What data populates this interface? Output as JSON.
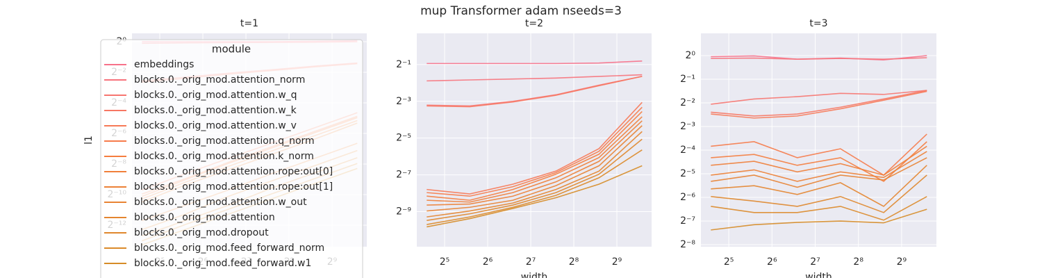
{
  "suptitle": "mup Transformer adam nseeds=3",
  "chart_data": [
    {
      "type": "line",
      "title": "t=1",
      "ylabel": "l1",
      "log_x": true,
      "log_y": true,
      "grid": true,
      "legend": {
        "title": "module",
        "loc": "upper left"
      },
      "x": [
        24,
        48,
        96,
        192,
        384,
        768
      ],
      "xlim": [
        20.46,
        895
      ],
      "xticks": [
        {
          "value": 32,
          "label": "2⁵"
        },
        {
          "value": 64,
          "label": "2⁶"
        },
        {
          "value": 128,
          "label": "2⁷"
        },
        {
          "value": 256,
          "label": "2⁸"
        },
        {
          "value": 512,
          "label": "2⁹"
        }
      ],
      "ylim": [
        9.2e-05,
        1.46
      ],
      "yticks": [
        {
          "value": 1,
          "label": "2⁰"
        },
        {
          "value": 0.25,
          "label": "2⁻²"
        },
        {
          "value": 0.0625,
          "label": "2⁻⁴"
        },
        {
          "value": 0.015625,
          "label": "2⁻⁶"
        },
        {
          "value": 0.00390625,
          "label": "2⁻⁸"
        },
        {
          "value": 0.0009765625,
          "label": "2⁻¹⁰"
        },
        {
          "value": 0.000244140625,
          "label": "2⁻¹²"
        }
      ],
      "series": [
        {
          "name": "embeddings",
          "color": "#f77189",
          "values": [
            1.0,
            1.0,
            1.0,
            1.0,
            1.02,
            1.05
          ]
        },
        {
          "name": "blocks.0._orig_mod.attention_norm",
          "color": "#f7737c",
          "values": [
            0.93,
            0.95,
            0.96,
            0.97,
            0.98,
            1.0
          ]
        },
        {
          "name": "blocks.0._orig_mod.attention.w_q",
          "color": "#f77570",
          "values": [
            0.17,
            0.2,
            0.24,
            0.28,
            0.33,
            0.38
          ]
        },
        {
          "name": "blocks.0._orig_mod.attention.w_k",
          "color": "#f77763",
          "values": [
            0.16,
            0.19,
            0.23,
            0.27,
            0.32,
            0.37
          ]
        },
        {
          "name": "blocks.0._orig_mod.attention.w_v",
          "color": "#f77956",
          "values": [
            0.0012,
            0.0025,
            0.005,
            0.01,
            0.02,
            0.04
          ]
        },
        {
          "name": "blocks.0._orig_mod.attention.q_norm",
          "color": "#f67b4a",
          "values": [
            0.001,
            0.002,
            0.0042,
            0.0085,
            0.017,
            0.034
          ]
        },
        {
          "name": "blocks.0._orig_mod.attention.k_norm",
          "color": "#f57d3e",
          "values": [
            0.0009,
            0.0019,
            0.004,
            0.008,
            0.016,
            0.032
          ]
        },
        {
          "name": "blocks.0._orig_mod.attention.rope:out[0]",
          "color": "#f07f3a",
          "values": [
            0.0008,
            0.0017,
            0.0035,
            0.007,
            0.014,
            0.028
          ]
        },
        {
          "name": "blocks.0._orig_mod.attention.rope:out[1]",
          "color": "#ec8136",
          "values": [
            0.0007,
            0.0015,
            0.003,
            0.006,
            0.012,
            0.025
          ]
        },
        {
          "name": "blocks.0._orig_mod.attention.w_out",
          "color": "#e88333",
          "values": [
            0.0003,
            0.0006,
            0.0012,
            0.0025,
            0.005,
            0.01
          ]
        },
        {
          "name": "blocks.0._orig_mod.attention",
          "color": "#e4852f",
          "values": [
            0.0002,
            0.0004,
            0.0009,
            0.0018,
            0.0036,
            0.0072
          ]
        },
        {
          "name": "blocks.0._orig_mod.dropout",
          "color": "#df872c",
          "values": [
            0.00015,
            0.0003,
            0.0006,
            0.0013,
            0.0026,
            0.0052
          ]
        },
        {
          "name": "blocks.0._orig_mod.feed_forward_norm",
          "color": "#db8a29",
          "values": [
            0.00012,
            0.00025,
            0.0005,
            0.001,
            0.002,
            0.004
          ]
        },
        {
          "name": "blocks.0._orig_mod.feed_forward.w1",
          "color": "#d68c27",
          "values": [
            0.0001,
            0.0002,
            0.0004,
            0.0008,
            0.0016,
            0.0032
          ]
        }
      ]
    },
    {
      "type": "line",
      "title": "t=2",
      "xlabel": "width",
      "log_x": true,
      "log_y": true,
      "grid": true,
      "x": [
        24,
        48,
        96,
        192,
        384,
        768
      ],
      "xlim": [
        20.46,
        895
      ],
      "xticks": [
        {
          "value": 32,
          "label": "2⁵"
        },
        {
          "value": 64,
          "label": "2⁶"
        },
        {
          "value": 128,
          "label": "2⁷"
        },
        {
          "value": 256,
          "label": "2⁸"
        },
        {
          "value": 512,
          "label": "2⁹"
        }
      ],
      "ylim": [
        0.00052,
        1.62
      ],
      "yticks": [
        {
          "value": 0.5,
          "label": "2⁻¹"
        },
        {
          "value": 0.125,
          "label": "2⁻³"
        },
        {
          "value": 0.03125,
          "label": "2⁻⁵"
        },
        {
          "value": 0.0078125,
          "label": "2⁻⁷"
        },
        {
          "value": 0.001953125,
          "label": "2⁻⁹"
        }
      ],
      "series": [
        {
          "color": "#f77189",
          "values": [
            0.52,
            0.52,
            0.52,
            0.52,
            0.53,
            0.57
          ]
        },
        {
          "color": "#f7737c",
          "values": [
            0.27,
            0.28,
            0.29,
            0.3,
            0.32,
            0.34
          ]
        },
        {
          "color": "#f77570",
          "values": [
            0.108,
            0.105,
            0.125,
            0.16,
            0.23,
            0.32
          ]
        },
        {
          "color": "#f77763",
          "values": [
            0.105,
            0.102,
            0.122,
            0.157,
            0.225,
            0.32
          ]
        },
        {
          "color": "#f77956",
          "values": [
            0.0045,
            0.0038,
            0.0055,
            0.009,
            0.021,
            0.12
          ]
        },
        {
          "color": "#f67b4a",
          "values": [
            0.004,
            0.0035,
            0.005,
            0.0085,
            0.019,
            0.1
          ]
        },
        {
          "color": "#f57d3e",
          "values": [
            0.0035,
            0.003,
            0.0045,
            0.008,
            0.017,
            0.085
          ]
        },
        {
          "color": "#f07f3a",
          "values": [
            0.003,
            0.0028,
            0.004,
            0.007,
            0.015,
            0.07
          ]
        },
        {
          "color": "#ec8136",
          "values": [
            0.0025,
            0.0026,
            0.0035,
            0.006,
            0.013,
            0.06
          ]
        },
        {
          "color": "#e88333",
          "values": [
            0.002,
            0.0023,
            0.003,
            0.0052,
            0.011,
            0.05
          ]
        },
        {
          "color": "#e4852f",
          "values": [
            0.0016,
            0.002,
            0.0027,
            0.0045,
            0.009,
            0.04
          ]
        },
        {
          "color": "#df872c",
          "values": [
            0.0014,
            0.0018,
            0.0025,
            0.004,
            0.008,
            0.03
          ]
        },
        {
          "color": "#db8a29",
          "values": [
            0.0012,
            0.0016,
            0.0023,
            0.0036,
            0.007,
            0.02
          ]
        },
        {
          "color": "#d68c27",
          "values": [
            0.0011,
            0.0015,
            0.0022,
            0.0033,
            0.0055,
            0.011
          ]
        }
      ]
    },
    {
      "type": "line",
      "title": "t=3",
      "xlabel": "width",
      "log_x": true,
      "log_y": true,
      "grid": true,
      "x": [
        24,
        48,
        96,
        192,
        384,
        768
      ],
      "xlim": [
        20.46,
        895
      ],
      "xticks": [
        {
          "value": 32,
          "label": "2⁵"
        },
        {
          "value": 64,
          "label": "2⁶"
        },
        {
          "value": 128,
          "label": "2⁷"
        },
        {
          "value": 256,
          "label": "2⁸"
        },
        {
          "value": 512,
          "label": "2⁹"
        }
      ],
      "ylim": [
        0.00367,
        1.92
      ],
      "yticks": [
        {
          "value": 1,
          "label": "2⁰"
        },
        {
          "value": 0.5,
          "label": "2⁻¹"
        },
        {
          "value": 0.25,
          "label": "2⁻²"
        },
        {
          "value": 0.125,
          "label": "2⁻³"
        },
        {
          "value": 0.0625,
          "label": "2⁻⁴"
        },
        {
          "value": 0.03125,
          "label": "2⁻⁵"
        },
        {
          "value": 0.015625,
          "label": "2⁻⁶"
        },
        {
          "value": 0.0078125,
          "label": "2⁻⁷"
        },
        {
          "value": 0.00390625,
          "label": "2⁻⁸"
        }
      ],
      "series": [
        {
          "color": "#f77189",
          "values": [
            0.97,
            0.99,
            0.9,
            0.93,
            0.88,
            1.0
          ]
        },
        {
          "color": "#f7737c",
          "values": [
            0.92,
            0.93,
            0.9,
            0.92,
            0.9,
            0.94
          ]
        },
        {
          "color": "#f77570",
          "values": [
            0.24,
            0.28,
            0.3,
            0.33,
            0.32,
            0.36
          ]
        },
        {
          "color": "#f77763",
          "values": [
            0.19,
            0.17,
            0.18,
            0.22,
            0.28,
            0.36
          ]
        },
        {
          "color": "#f77956",
          "values": [
            0.18,
            0.16,
            0.17,
            0.21,
            0.27,
            0.35
          ]
        },
        {
          "color": "#f67b4a",
          "values": [
            0.07,
            0.08,
            0.05,
            0.065,
            0.03,
            0.1
          ]
        },
        {
          "color": "#f57d3e",
          "values": [
            0.05,
            0.055,
            0.04,
            0.05,
            0.025,
            0.08
          ]
        },
        {
          "color": "#f07f3a",
          "values": [
            0.04,
            0.045,
            0.033,
            0.042,
            0.03,
            0.07
          ]
        },
        {
          "color": "#ec8136",
          "values": [
            0.03,
            0.035,
            0.025,
            0.033,
            0.028,
            0.06
          ]
        },
        {
          "color": "#e88333",
          "values": [
            0.025,
            0.03,
            0.021,
            0.03,
            0.026,
            0.05
          ]
        },
        {
          "color": "#e4852f",
          "values": [
            0.02,
            0.022,
            0.017,
            0.024,
            0.012,
            0.04
          ]
        },
        {
          "color": "#df872c",
          "values": [
            0.016,
            0.014,
            0.012,
            0.016,
            0.01,
            0.03
          ]
        },
        {
          "color": "#db8a29",
          "values": [
            0.012,
            0.01,
            0.01,
            0.012,
            0.008,
            0.016
          ]
        },
        {
          "color": "#d68c27",
          "values": [
            0.006,
            0.007,
            0.0075,
            0.0078,
            0.0074,
            0.011
          ]
        }
      ]
    }
  ]
}
